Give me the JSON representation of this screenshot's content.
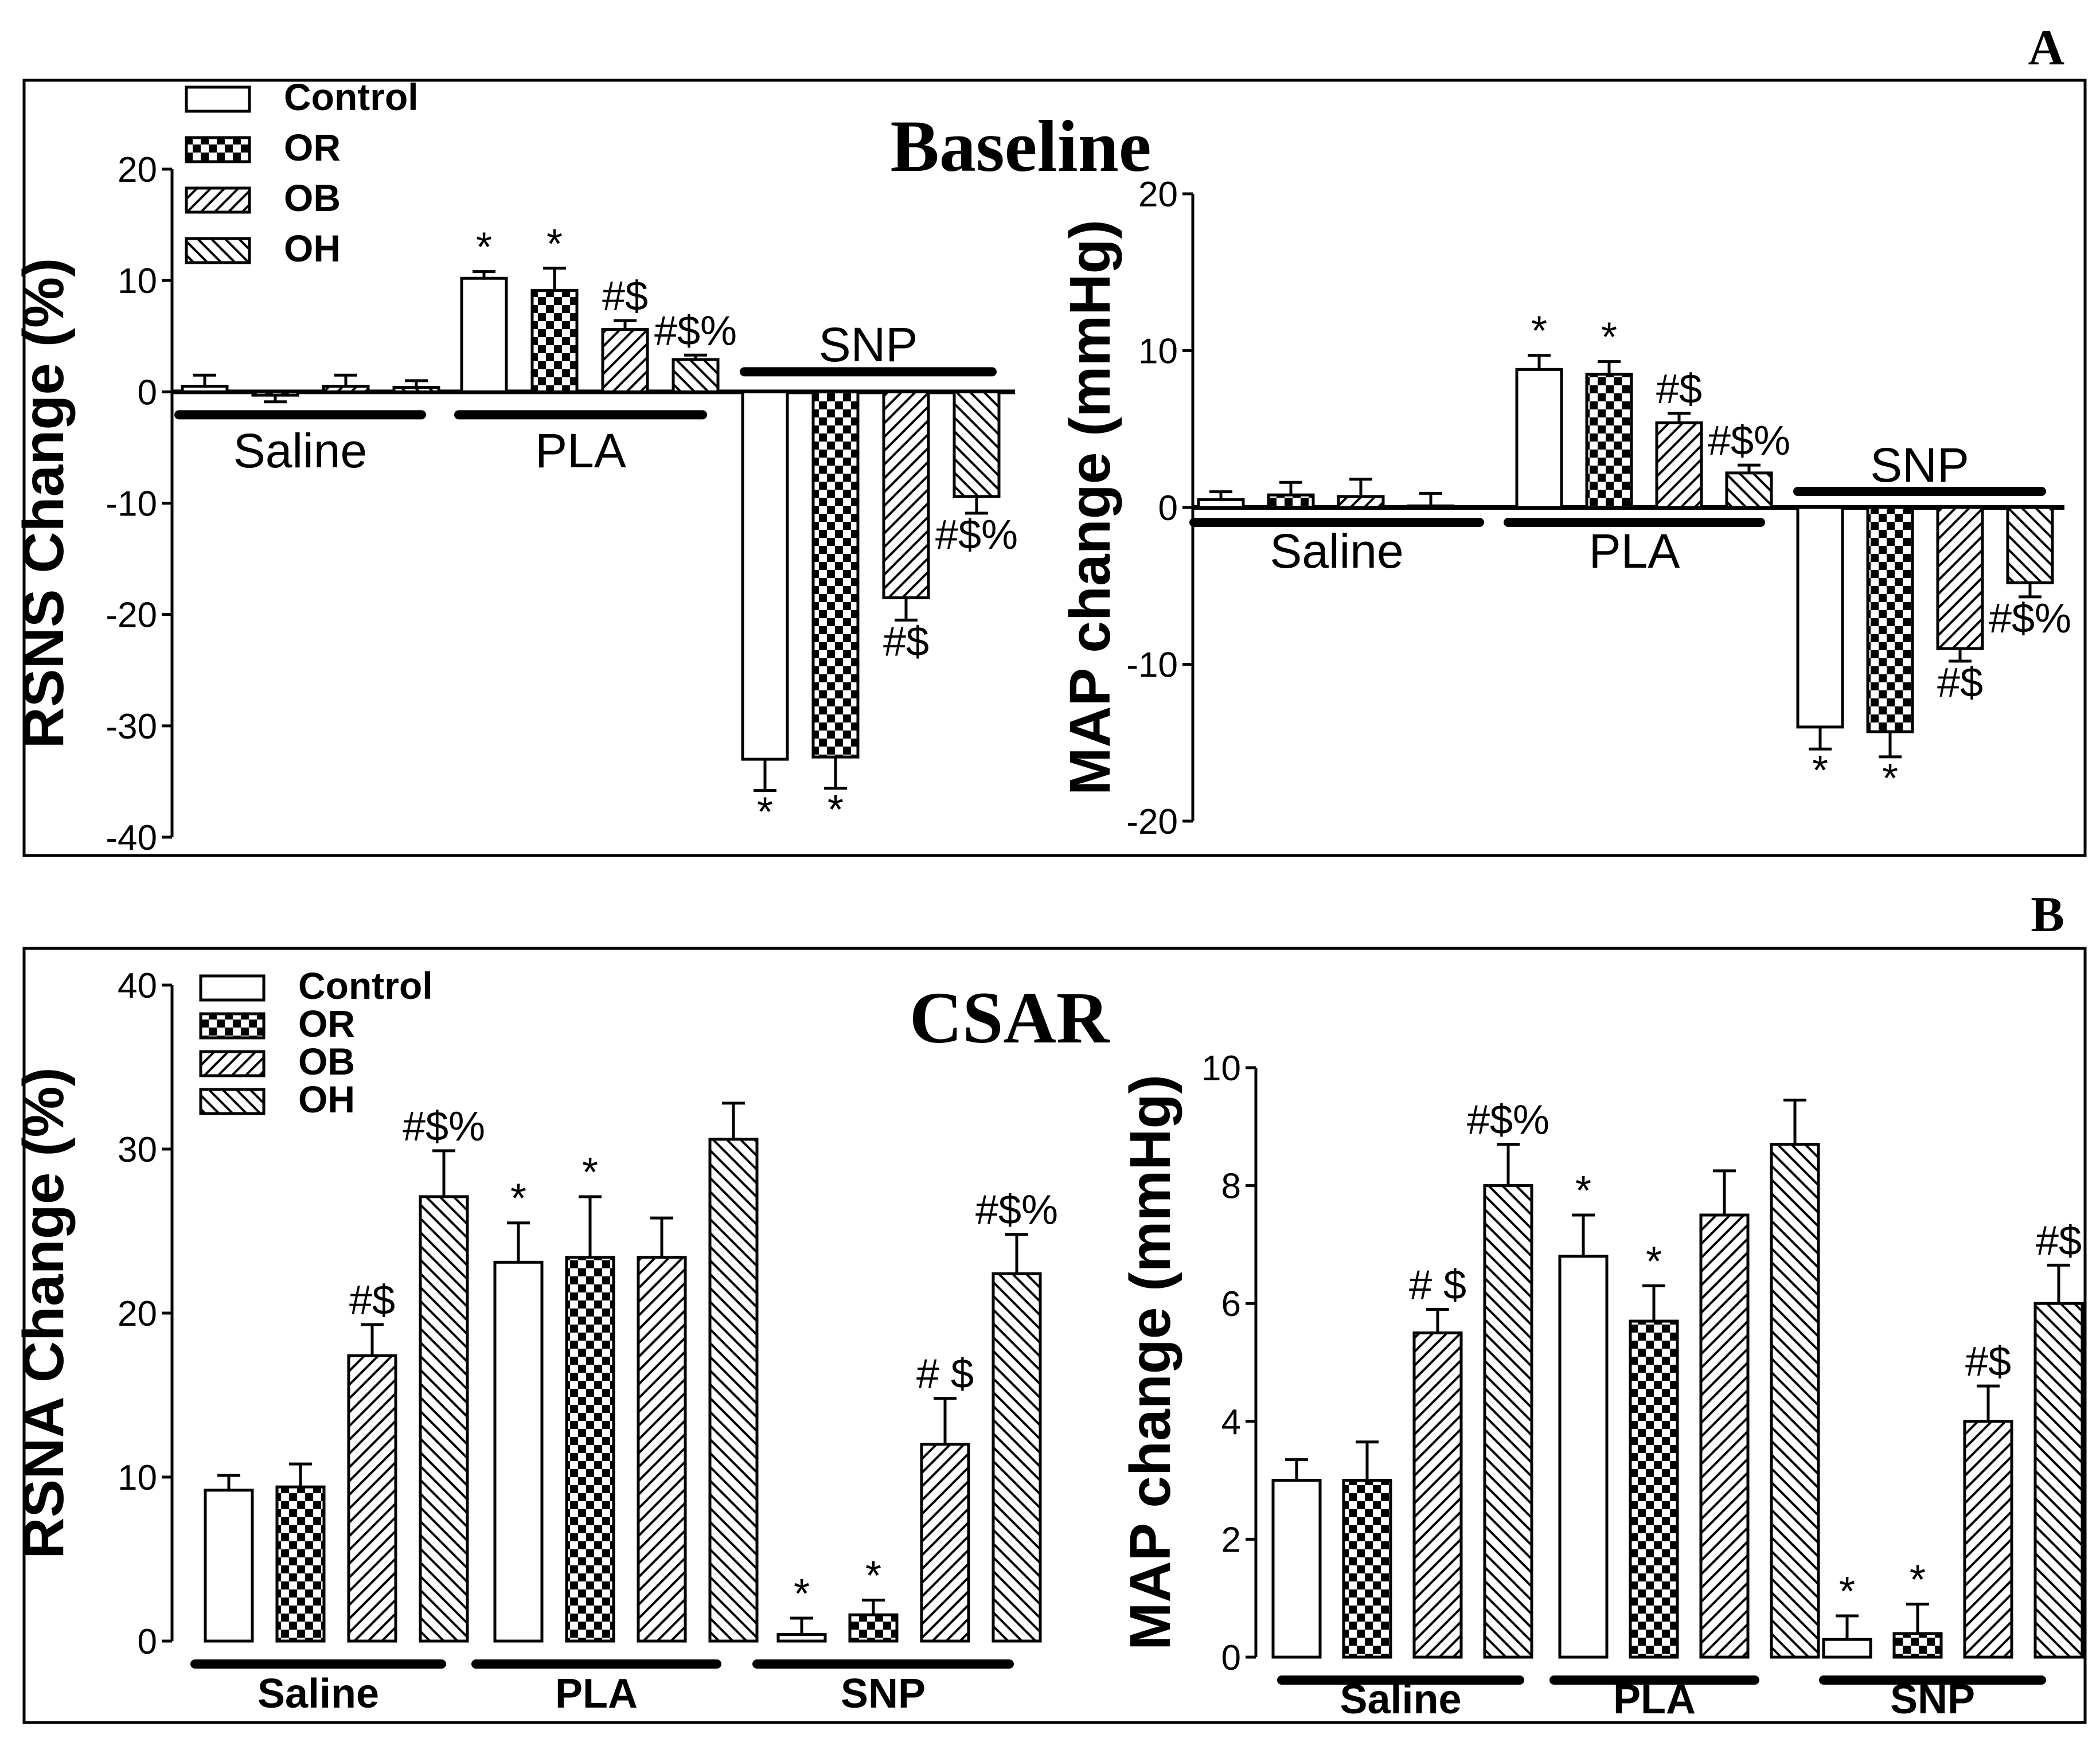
{
  "figure": {
    "panels": [
      {
        "letter": "A",
        "title": "Baseline"
      },
      {
        "letter": "B",
        "title": "CSAR"
      }
    ],
    "legend": [
      "Control",
      "OR",
      "OB",
      "OH"
    ],
    "patterns": [
      "none",
      "checker",
      "diag-fwd",
      "diag-back"
    ]
  },
  "chart_data": [
    {
      "id": "A-left",
      "panel": "A",
      "type": "bar",
      "title": "Baseline",
      "ylabel": "RSNS Change (%)",
      "ylim": [
        -40,
        20
      ],
      "yticks": [
        -40,
        -30,
        -20,
        -10,
        0,
        10,
        20
      ],
      "groups": [
        "Saline",
        "PLA",
        "SNP"
      ],
      "group_label_position": "below",
      "group_label_offset": [
        0,
        0,
        -8
      ],
      "legend_position": "top-left",
      "series": [
        {
          "name": "Control",
          "values": [
            0.5,
            10.2,
            -33
          ],
          "errors": [
            1.0,
            0.6,
            2.8
          ]
        },
        {
          "name": "OR",
          "values": [
            -0.3,
            9.1,
            -32.8
          ],
          "errors": [
            0.6,
            2.0,
            2.8
          ]
        },
        {
          "name": "OB",
          "values": [
            0.5,
            5.6,
            -18.5
          ],
          "errors": [
            1.0,
            0.8,
            2.0
          ]
        },
        {
          "name": "OH",
          "values": [
            0.4,
            2.9,
            -9.4
          ],
          "errors": [
            0.6,
            0.4,
            1.5
          ]
        }
      ],
      "significance": [
        [
          "",
          "*",
          "*"
        ],
        [
          "",
          "*",
          "*"
        ],
        [
          "",
          "#$",
          "#$"
        ],
        [
          "",
          "#$%",
          "#$%"
        ]
      ]
    },
    {
      "id": "A-right",
      "panel": "A",
      "type": "bar",
      "ylabel": "MAP change (mmHg)",
      "ylim": [
        -20,
        20
      ],
      "yticks": [
        -20,
        -10,
        0,
        10,
        20
      ],
      "groups": [
        "Saline",
        "PLA",
        "SNP"
      ],
      "group_label_position": "below",
      "group_label_offset": [
        0,
        0,
        -8
      ],
      "series": [
        {
          "name": "Control",
          "values": [
            0.5,
            8.8,
            -14
          ],
          "errors": [
            0.5,
            0.9,
            1.4
          ]
        },
        {
          "name": "OR",
          "values": [
            0.8,
            8.5,
            -14.3
          ],
          "errors": [
            0.8,
            0.8,
            1.6
          ]
        },
        {
          "name": "OB",
          "values": [
            0.7,
            5.4,
            -9
          ],
          "errors": [
            1.1,
            0.6,
            0.8
          ]
        },
        {
          "name": "OH",
          "values": [
            0.1,
            2.2,
            -4.8
          ],
          "errors": [
            0.8,
            0.5,
            0.9
          ]
        }
      ],
      "significance": [
        [
          "",
          "*",
          "*"
        ],
        [
          "",
          "*",
          "*"
        ],
        [
          "",
          "#$",
          "#$"
        ],
        [
          "",
          "#$%",
          "#$%"
        ]
      ]
    },
    {
      "id": "B-left",
      "panel": "B",
      "type": "bar",
      "title": "CSAR",
      "ylabel": "RSNA Change (%)",
      "ylim": [
        0,
        40
      ],
      "yticks": [
        0,
        10,
        20,
        30,
        40
      ],
      "groups": [
        "Saline",
        "PLA",
        "SNP"
      ],
      "group_label_position": "below",
      "legend_position": "top-left",
      "series": [
        {
          "name": "Control",
          "values": [
            9.2,
            23.1,
            0.4
          ],
          "errors": [
            0.9,
            2.4,
            1.0
          ]
        },
        {
          "name": "OR",
          "values": [
            9.4,
            23.4,
            1.6
          ],
          "errors": [
            1.4,
            3.7,
            0.9
          ]
        },
        {
          "name": "OB",
          "values": [
            17.4,
            23.4,
            12.0
          ],
          "errors": [
            1.9,
            2.4,
            2.8
          ]
        },
        {
          "name": "OH",
          "values": [
            27.1,
            30.6,
            22.4
          ],
          "errors": [
            2.8,
            2.2,
            2.4
          ]
        }
      ],
      "significance": [
        [
          "",
          "*",
          "*"
        ],
        [
          "",
          "*",
          "*"
        ],
        [
          "#$",
          "",
          "# $"
        ],
        [
          "#$%",
          "",
          "#$%"
        ]
      ]
    },
    {
      "id": "B-right",
      "panel": "B",
      "type": "bar",
      "ylabel": "MAP change (mmHg)",
      "ylim": [
        0,
        10
      ],
      "yticks": [
        0,
        2,
        4,
        6,
        8,
        10
      ],
      "groups": [
        "Saline",
        "PLA",
        "SNP"
      ],
      "group_label_position": "below",
      "series": [
        {
          "name": "Control",
          "values": [
            3.0,
            6.8,
            0.3
          ],
          "errors": [
            0.35,
            0.7,
            0.4
          ]
        },
        {
          "name": "OR",
          "values": [
            3.0,
            5.7,
            0.4
          ],
          "errors": [
            0.65,
            0.6,
            0.5
          ]
        },
        {
          "name": "OB",
          "values": [
            5.5,
            7.5,
            4.0
          ],
          "errors": [
            0.4,
            0.75,
            0.6
          ]
        },
        {
          "name": "OH",
          "values": [
            8.0,
            8.7,
            6.0
          ],
          "errors": [
            0.7,
            0.75,
            0.65
          ]
        }
      ],
      "significance": [
        [
          "",
          "*",
          "*"
        ],
        [
          "",
          "*",
          "*"
        ],
        [
          "# $",
          "",
          "#$"
        ],
        [
          "#$%",
          "",
          "#$"
        ]
      ]
    }
  ]
}
